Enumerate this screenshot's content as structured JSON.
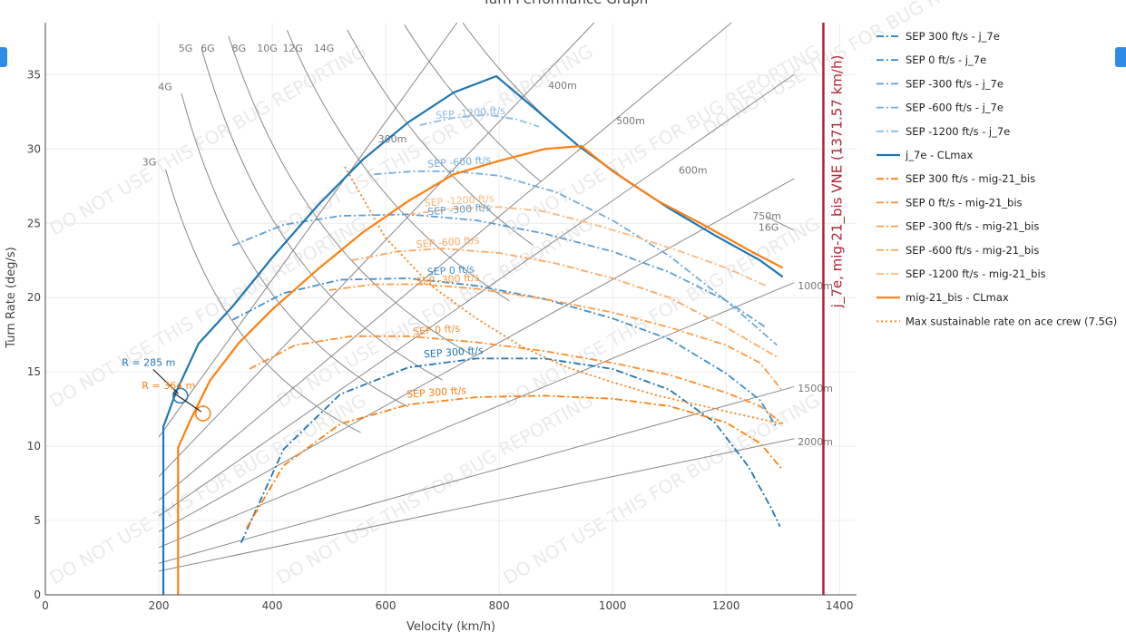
{
  "title": "Turn Performance Graph",
  "chart_data": {
    "type": "line",
    "title": "Turn Performance Graph",
    "xlabel": "Velocity (km/h)",
    "ylabel": "Turn Rate (deg/s)",
    "xlim": [
      0,
      1430
    ],
    "ylim": [
      0,
      38.5
    ],
    "xticks": [
      0,
      200,
      400,
      600,
      800,
      1000,
      1200,
      1400
    ],
    "yticks": [
      0,
      5,
      10,
      15,
      20,
      25,
      30,
      35
    ],
    "grid": true,
    "legend_position": "right",
    "series": [
      {
        "name": "SEP 300 ft/s - j_7e",
        "color": "#1f77b4",
        "dash": "dashdot",
        "x": [
          345,
          420,
          520,
          640,
          760,
          880,
          1000,
          1100,
          1180,
          1240,
          1280,
          1295
        ],
        "y": [
          3.5,
          9.8,
          13.5,
          15.3,
          15.9,
          15.9,
          15.2,
          13.8,
          11.6,
          8.6,
          5.8,
          4.6
        ]
      },
      {
        "name": "SEP 0 ft/s - j_7e",
        "color": "#3f8fcc",
        "dash": "dashdot",
        "x": [
          330,
          420,
          520,
          640,
          760,
          880,
          1000,
          1100,
          1200,
          1260,
          1290
        ],
        "y": [
          18.5,
          20.3,
          21.2,
          21.3,
          20.8,
          19.9,
          18.6,
          17.2,
          14.9,
          13.1,
          11.2
        ]
      },
      {
        "name": "SEP -300 ft/s - j_7e",
        "color": "#5a9fd4",
        "dash": "dashdot",
        "x": [
          330,
          420,
          520,
          640,
          760,
          880,
          1000,
          1100,
          1200,
          1270
        ],
        "y": [
          23.5,
          24.9,
          25.5,
          25.6,
          25.2,
          24.3,
          23.1,
          21.7,
          19.8,
          18.0
        ]
      },
      {
        "name": "SEP -600 ft/s - j_7e",
        "color": "#72acd9",
        "dash": "dashdot",
        "x": [
          580,
          650,
          720,
          800,
          900,
          1000,
          1100,
          1200,
          1290
        ],
        "y": [
          28.3,
          28.5,
          28.5,
          28.2,
          27.1,
          25.2,
          22.8,
          19.8,
          16.8
        ]
      },
      {
        "name": "SEP -1200 ft/s - j_7e",
        "color": "#8dbce0",
        "dash": "dashdot",
        "x": [
          660,
          720,
          780,
          830,
          870
        ],
        "y": [
          31.6,
          32.1,
          32.3,
          32.0,
          31.5
        ]
      },
      {
        "name": "j_7e - CLmax",
        "color": "#1f77b4",
        "dash": "solid",
        "x": [
          208,
          208,
          208,
          230,
          270,
          330,
          400,
          480,
          560,
          640,
          720,
          795,
          860,
          940,
          1020,
          1100,
          1180,
          1260,
          1300
        ],
        "y": [
          0,
          5,
          11.3,
          13.6,
          16.9,
          19.4,
          22.7,
          26.2,
          29.3,
          31.8,
          33.8,
          34.9,
          32.8,
          30.2,
          28.0,
          26.0,
          24.2,
          22.5,
          21.4
        ]
      },
      {
        "name": "SEP 300 ft/s - mig-21_bis",
        "color": "#ff7f0e",
        "dash": "dashdot",
        "x": [
          355,
          420,
          520,
          640,
          760,
          880,
          1000,
          1100,
          1200,
          1260,
          1300
        ],
        "y": [
          4.5,
          8.7,
          11.5,
          12.8,
          13.3,
          13.4,
          13.2,
          12.7,
          11.6,
          10.2,
          8.4
        ]
      },
      {
        "name": "SEP 0 ft/s - mig-21_bis",
        "color": "#ff8c29",
        "dash": "dashdot",
        "x": [
          360,
          440,
          540,
          640,
          760,
          880,
          1000,
          1100,
          1200,
          1260,
          1300
        ],
        "y": [
          15.2,
          16.8,
          17.4,
          17.4,
          17.0,
          16.4,
          15.6,
          14.8,
          13.6,
          12.7,
          11.5
        ]
      },
      {
        "name": "SEP -300 ft/s - mig-21_bis",
        "color": "#ff9a45",
        "dash": "dashdot",
        "x": [
          500,
          580,
          660,
          760,
          880,
          1000,
          1100,
          1200,
          1260,
          1300
        ],
        "y": [
          20.5,
          20.9,
          20.9,
          20.6,
          19.9,
          19.0,
          18.0,
          16.8,
          15.6,
          13.7
        ]
      },
      {
        "name": "SEP -600 ft/s - mig-21_bis",
        "color": "#ffa860",
        "dash": "dashdot",
        "x": [
          540,
          620,
          700,
          800,
          900,
          1000,
          1100,
          1200,
          1290
        ],
        "y": [
          22.5,
          23.1,
          23.3,
          23.0,
          22.3,
          21.3,
          20.0,
          18.0,
          16.0
        ]
      },
      {
        "name": "SEP -1200 ft/s - mig-21_bis",
        "color": "#ffb77c",
        "dash": "dashdot",
        "x": [
          640,
          720,
          800,
          880,
          960,
          1040,
          1120,
          1200,
          1270
        ],
        "y": [
          25.6,
          26.0,
          26.1,
          25.8,
          25.0,
          24.1,
          23.1,
          22.0,
          20.8
        ]
      },
      {
        "name": "mig-21_bis - CLmax",
        "color": "#ff7f0e",
        "dash": "solid",
        "x": [
          234,
          234,
          234,
          255,
          290,
          340,
          400,
          480,
          560,
          640,
          720,
          800,
          880,
          945,
          1000,
          1080,
          1160,
          1240,
          1300
        ],
        "y": [
          0,
          5,
          9.9,
          11.7,
          14.4,
          16.9,
          19.2,
          21.9,
          24.4,
          26.5,
          28.3,
          29.2,
          30.0,
          30.2,
          28.5,
          26.5,
          24.9,
          23.2,
          22.0
        ]
      },
      {
        "name": "Max sustainable rate on ace crew (7.5G)",
        "color": "#ff7f0e",
        "dash": "dotted",
        "x": [
          528,
          600,
          680,
          760,
          840,
          920,
          1000,
          1080,
          1160,
          1240,
          1300
        ],
        "y": [
          28.8,
          24.0,
          20.8,
          18.6,
          16.7,
          15.3,
          14.3,
          13.4,
          12.7,
          12.0,
          11.5
        ]
      }
    ],
    "g_lines": [
      "3G",
      "4G",
      "5G",
      "6G",
      "8G",
      "10G",
      "12G",
      "14G",
      "16G"
    ],
    "radius_lines": [
      "300m",
      "400m",
      "500m",
      "600m",
      "750m",
      "1000m",
      "1500m",
      "2000m"
    ],
    "series_labels": [
      {
        "text": "SEP -1200 ft/s",
        "color": "#8dbce0",
        "x": 750,
        "y": 32.2
      },
      {
        "text": "SEP -600 ft/s",
        "color": "#72acd9",
        "x": 730,
        "y": 28.9
      },
      {
        "text": "SEP -300 ft/s",
        "color": "#5a9fd4",
        "x": 730,
        "y": 25.7
      },
      {
        "text": "SEP -1200 ft/s",
        "color": "#ffb77c",
        "x": 730,
        "y": 26.3
      },
      {
        "text": "SEP -600 ft/s",
        "color": "#ffa860",
        "x": 710,
        "y": 23.5
      },
      {
        "text": "SEP 0 ft/s",
        "color": "#3f8fcc",
        "x": 715,
        "y": 21.6
      },
      {
        "text": "SEP -300 ft/s",
        "color": "#ff9a45",
        "x": 710,
        "y": 21.0
      },
      {
        "text": "SEP 0 ft/s",
        "color": "#ff8c29",
        "x": 690,
        "y": 17.6
      },
      {
        "text": "SEP 300 ft/s",
        "color": "#1f77b4",
        "x": 720,
        "y": 16.1
      },
      {
        "text": "SEP 300 ft/s",
        "color": "#ff7f0e",
        "x": 690,
        "y": 13.4
      }
    ],
    "vne_line": {
      "x": 1371.57,
      "label": "j_7e, mig-21_bis VNE (1371.57 km/h)",
      "color": "#b22234"
    },
    "annotations": [
      {
        "text": "R = 285 m",
        "color": "#1f77b4",
        "x": 238,
        "y": 13.4
      },
      {
        "text": "R = 364 m",
        "color": "#ff7f0e",
        "x": 278,
        "y": 12.2
      }
    ],
    "watermark": "DO NOT USE THIS FOR BUG REPORTING"
  }
}
